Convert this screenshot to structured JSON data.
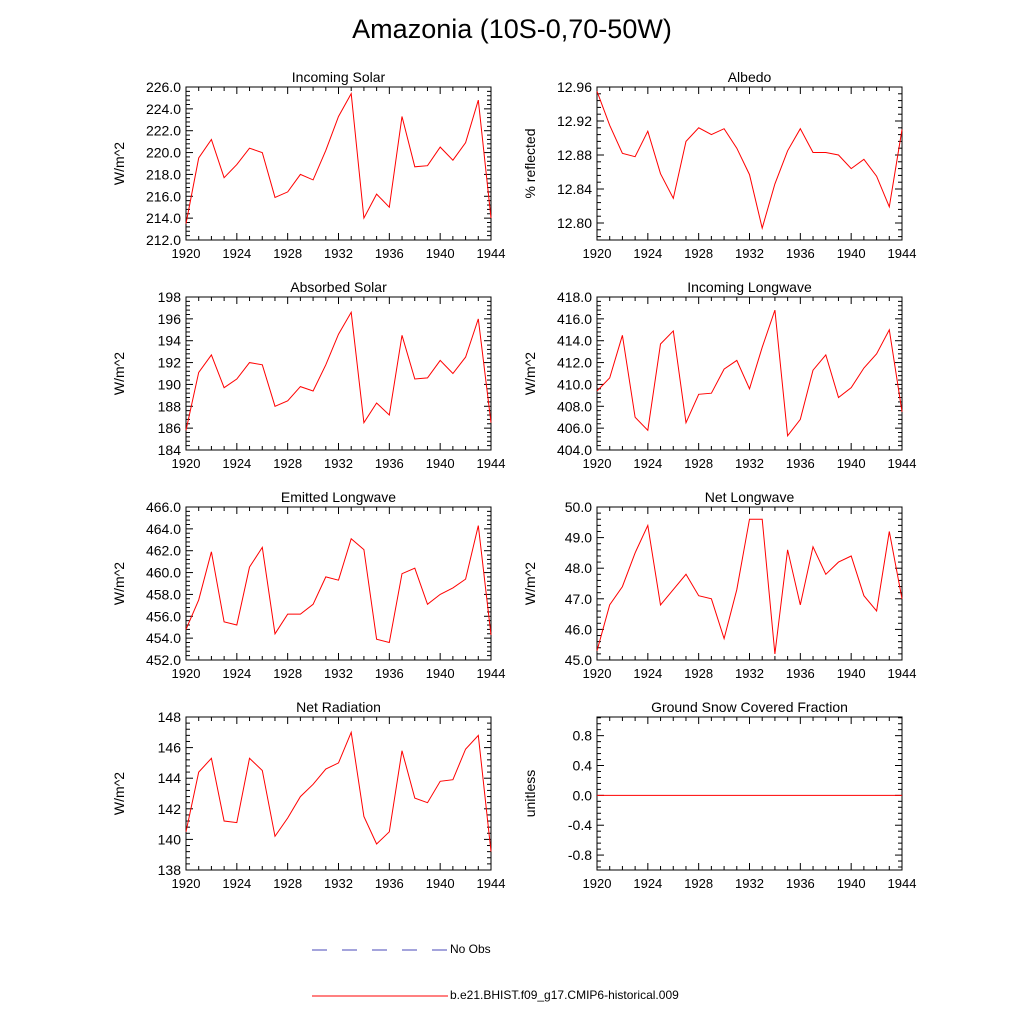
{
  "figure": {
    "title": "Amazonia (10S-0,70-50W)"
  },
  "colors": {
    "model": "#ff0000",
    "obs": "#4a4ab8",
    "axis": "#000000"
  },
  "legend": {
    "items": [
      {
        "label": "No Obs",
        "style": "dashed",
        "color": "#4a4ab8"
      },
      {
        "label": "b.e21.BHIST.f09_g17.CMIP6-historical.009",
        "style": "solid",
        "color": "#ff0000"
      }
    ]
  },
  "chart_data": [
    {
      "type": "line",
      "title": "Incoming Solar",
      "ylabel": "W/m^2",
      "x": [
        1920,
        1921,
        1922,
        1923,
        1924,
        1925,
        1926,
        1927,
        1928,
        1929,
        1930,
        1931,
        1932,
        1933,
        1934,
        1935,
        1936,
        1937,
        1938,
        1939,
        1940,
        1941,
        1942,
        1943,
        1944
      ],
      "series": [
        {
          "name": "b.e21.BHIST.f09_g17.CMIP6-historical.009",
          "values": [
            213.5,
            219.5,
            221.2,
            217.7,
            218.9,
            220.4,
            220.0,
            215.9,
            216.4,
            218.0,
            217.5,
            220.2,
            223.3,
            225.4,
            214.0,
            216.2,
            215.0,
            223.3,
            218.7,
            218.8,
            220.5,
            219.3,
            220.9,
            224.8,
            214.0
          ]
        }
      ],
      "xlim": [
        1920,
        1944
      ],
      "ylim": [
        212,
        226
      ],
      "xticks": [
        1920,
        1924,
        1928,
        1932,
        1936,
        1940,
        1944
      ],
      "yticks": [
        212,
        214,
        216,
        218,
        220,
        222,
        224,
        226
      ],
      "ytick_labels": [
        "212.0",
        "214.0",
        "216.0",
        "218.0",
        "220.0",
        "222.0",
        "224.0",
        "226.0"
      ]
    },
    {
      "type": "line",
      "title": "Albedo",
      "ylabel": "% reflected",
      "x": [
        1920,
        1921,
        1922,
        1923,
        1924,
        1925,
        1926,
        1927,
        1928,
        1929,
        1930,
        1931,
        1932,
        1933,
        1934,
        1935,
        1936,
        1937,
        1938,
        1939,
        1940,
        1941,
        1942,
        1943,
        1944
      ],
      "series": [
        {
          "name": "b.e21.BHIST.f09_g17.CMIP6-historical.009",
          "values": [
            12.955,
            12.915,
            12.882,
            12.878,
            12.908,
            12.858,
            12.829,
            12.896,
            12.912,
            12.904,
            12.911,
            12.888,
            12.857,
            12.794,
            12.846,
            12.885,
            12.911,
            12.883,
            12.883,
            12.88,
            12.864,
            12.875,
            12.855,
            12.819,
            12.91
          ]
        }
      ],
      "xlim": [
        1920,
        1944
      ],
      "ylim": [
        12.78,
        12.96
      ],
      "xticks": [
        1920,
        1924,
        1928,
        1932,
        1936,
        1940,
        1944
      ],
      "yticks": [
        12.8,
        12.84,
        12.88,
        12.92,
        12.96
      ],
      "ytick_labels": [
        "12.80",
        "12.84",
        "12.88",
        "12.92",
        "12.96"
      ]
    },
    {
      "type": "line",
      "title": "Absorbed Solar",
      "ylabel": "W/m^2",
      "x": [
        1920,
        1921,
        1922,
        1923,
        1924,
        1925,
        1926,
        1927,
        1928,
        1929,
        1930,
        1931,
        1932,
        1933,
        1934,
        1935,
        1936,
        1937,
        1938,
        1939,
        1940,
        1941,
        1942,
        1943,
        1944
      ],
      "series": [
        {
          "name": "b.e21.BHIST.f09_g17.CMIP6-historical.009",
          "values": [
            185.8,
            191.1,
            192.7,
            189.7,
            190.5,
            192.0,
            191.8,
            188.0,
            188.5,
            189.8,
            189.4,
            191.8,
            194.6,
            196.6,
            186.5,
            188.3,
            187.2,
            194.5,
            190.5,
            190.6,
            192.2,
            191.0,
            192.5,
            196.0,
            186.5
          ]
        }
      ],
      "xlim": [
        1920,
        1944
      ],
      "ylim": [
        184,
        198
      ],
      "xticks": [
        1920,
        1924,
        1928,
        1932,
        1936,
        1940,
        1944
      ],
      "yticks": [
        184,
        186,
        188,
        190,
        192,
        194,
        196,
        198
      ],
      "ytick_labels": [
        "184",
        "186",
        "188",
        "190",
        "192",
        "194",
        "196",
        "198"
      ]
    },
    {
      "type": "line",
      "title": "Incoming Longwave",
      "ylabel": "W/m^2",
      "x": [
        1920,
        1921,
        1922,
        1923,
        1924,
        1925,
        1926,
        1927,
        1928,
        1929,
        1930,
        1931,
        1932,
        1933,
        1934,
        1935,
        1936,
        1937,
        1938,
        1939,
        1940,
        1941,
        1942,
        1943,
        1944
      ],
      "series": [
        {
          "name": "b.e21.BHIST.f09_g17.CMIP6-historical.009",
          "values": [
            409.4,
            410.6,
            414.5,
            407.0,
            405.8,
            413.7,
            414.9,
            406.5,
            409.1,
            409.2,
            411.4,
            412.2,
            409.6,
            413.4,
            416.8,
            405.3,
            406.8,
            411.3,
            412.7,
            408.8,
            409.7,
            411.5,
            412.8,
            415.0,
            407.5
          ]
        }
      ],
      "xlim": [
        1920,
        1944
      ],
      "ylim": [
        404,
        418
      ],
      "xticks": [
        1920,
        1924,
        1928,
        1932,
        1936,
        1940,
        1944
      ],
      "yticks": [
        404,
        406,
        408,
        410,
        412,
        414,
        416,
        418
      ],
      "ytick_labels": [
        "404.0",
        "406.0",
        "408.0",
        "410.0",
        "412.0",
        "414.0",
        "416.0",
        "418.0"
      ]
    },
    {
      "type": "line",
      "title": "Emitted Longwave",
      "ylabel": "W/m^2",
      "x": [
        1920,
        1921,
        1922,
        1923,
        1924,
        1925,
        1926,
        1927,
        1928,
        1929,
        1930,
        1931,
        1932,
        1933,
        1934,
        1935,
        1936,
        1937,
        1938,
        1939,
        1940,
        1941,
        1942,
        1943,
        1944
      ],
      "series": [
        {
          "name": "b.e21.BHIST.f09_g17.CMIP6-historical.009",
          "values": [
            454.8,
            457.5,
            461.9,
            455.5,
            455.2,
            460.5,
            462.3,
            454.4,
            456.2,
            456.2,
            457.1,
            459.6,
            459.3,
            463.1,
            462.1,
            453.9,
            453.6,
            459.9,
            460.4,
            457.1,
            458.0,
            458.6,
            459.4,
            464.3,
            454.3
          ]
        }
      ],
      "xlim": [
        1920,
        1944
      ],
      "ylim": [
        452,
        466
      ],
      "xticks": [
        1920,
        1924,
        1928,
        1932,
        1936,
        1940,
        1944
      ],
      "yticks": [
        452,
        454,
        456,
        458,
        460,
        462,
        464,
        466
      ],
      "ytick_labels": [
        "452.0",
        "454.0",
        "456.0",
        "458.0",
        "460.0",
        "462.0",
        "464.0",
        "466.0"
      ]
    },
    {
      "type": "line",
      "title": "Net Longwave",
      "ylabel": "W/m^2",
      "x": [
        1920,
        1921,
        1922,
        1923,
        1924,
        1925,
        1926,
        1927,
        1928,
        1929,
        1930,
        1931,
        1932,
        1933,
        1934,
        1935,
        1936,
        1937,
        1938,
        1939,
        1940,
        1941,
        1942,
        1943,
        1944
      ],
      "series": [
        {
          "name": "b.e21.BHIST.f09_g17.CMIP6-historical.009",
          "values": [
            45.3,
            46.8,
            47.4,
            48.5,
            49.4,
            46.8,
            47.3,
            47.8,
            47.1,
            47.0,
            45.7,
            47.3,
            49.6,
            49.6,
            45.2,
            48.6,
            46.8,
            48.7,
            47.8,
            48.2,
            48.4,
            47.1,
            46.6,
            49.2,
            47.0
          ]
        }
      ],
      "xlim": [
        1920,
        1944
      ],
      "ylim": [
        45,
        50
      ],
      "xticks": [
        1920,
        1924,
        1928,
        1932,
        1936,
        1940,
        1944
      ],
      "yticks": [
        45,
        46,
        47,
        48,
        49,
        50
      ],
      "ytick_labels": [
        "45.0",
        "46.0",
        "47.0",
        "48.0",
        "49.0",
        "50.0"
      ]
    },
    {
      "type": "line",
      "title": "Net Radiation",
      "ylabel": "W/m^2",
      "x": [
        1920,
        1921,
        1922,
        1923,
        1924,
        1925,
        1926,
        1927,
        1928,
        1929,
        1930,
        1931,
        1932,
        1933,
        1934,
        1935,
        1936,
        1937,
        1938,
        1939,
        1940,
        1941,
        1942,
        1943,
        1944
      ],
      "series": [
        {
          "name": "b.e21.BHIST.f09_g17.CMIP6-historical.009",
          "values": [
            140.5,
            144.4,
            145.3,
            141.2,
            141.1,
            145.3,
            144.5,
            140.2,
            141.4,
            142.8,
            143.6,
            144.6,
            145.0,
            147.0,
            141.5,
            139.7,
            140.5,
            145.8,
            142.7,
            142.4,
            143.8,
            143.9,
            145.9,
            146.8,
            139.2
          ]
        }
      ],
      "xlim": [
        1920,
        1944
      ],
      "ylim": [
        138,
        148
      ],
      "xticks": [
        1920,
        1924,
        1928,
        1932,
        1936,
        1940,
        1944
      ],
      "yticks": [
        138,
        140,
        142,
        144,
        146,
        148
      ],
      "ytick_labels": [
        "138",
        "140",
        "142",
        "144",
        "146",
        "148"
      ]
    },
    {
      "type": "line",
      "title": "Ground Snow Covered Fraction",
      "ylabel": "unitless",
      "x": [
        1920,
        1921,
        1922,
        1923,
        1924,
        1925,
        1926,
        1927,
        1928,
        1929,
        1930,
        1931,
        1932,
        1933,
        1934,
        1935,
        1936,
        1937,
        1938,
        1939,
        1940,
        1941,
        1942,
        1943,
        1944
      ],
      "series": [
        {
          "name": "b.e21.BHIST.f09_g17.CMIP6-historical.009",
          "values": [
            0,
            0,
            0,
            0,
            0,
            0,
            0,
            0,
            0,
            0,
            0,
            0,
            0,
            0,
            0,
            0,
            0,
            0,
            0,
            0,
            0,
            0,
            0,
            0,
            0
          ]
        }
      ],
      "xlim": [
        1920,
        1944
      ],
      "ylim": [
        -1.0,
        1.05
      ],
      "xticks": [
        1920,
        1924,
        1928,
        1932,
        1936,
        1940,
        1944
      ],
      "yticks": [
        -0.8,
        -0.4,
        0.0,
        0.4,
        0.8
      ],
      "ytick_labels": [
        "-0.8",
        "-0.4",
        "0.0",
        "0.4",
        "0.8"
      ]
    }
  ]
}
